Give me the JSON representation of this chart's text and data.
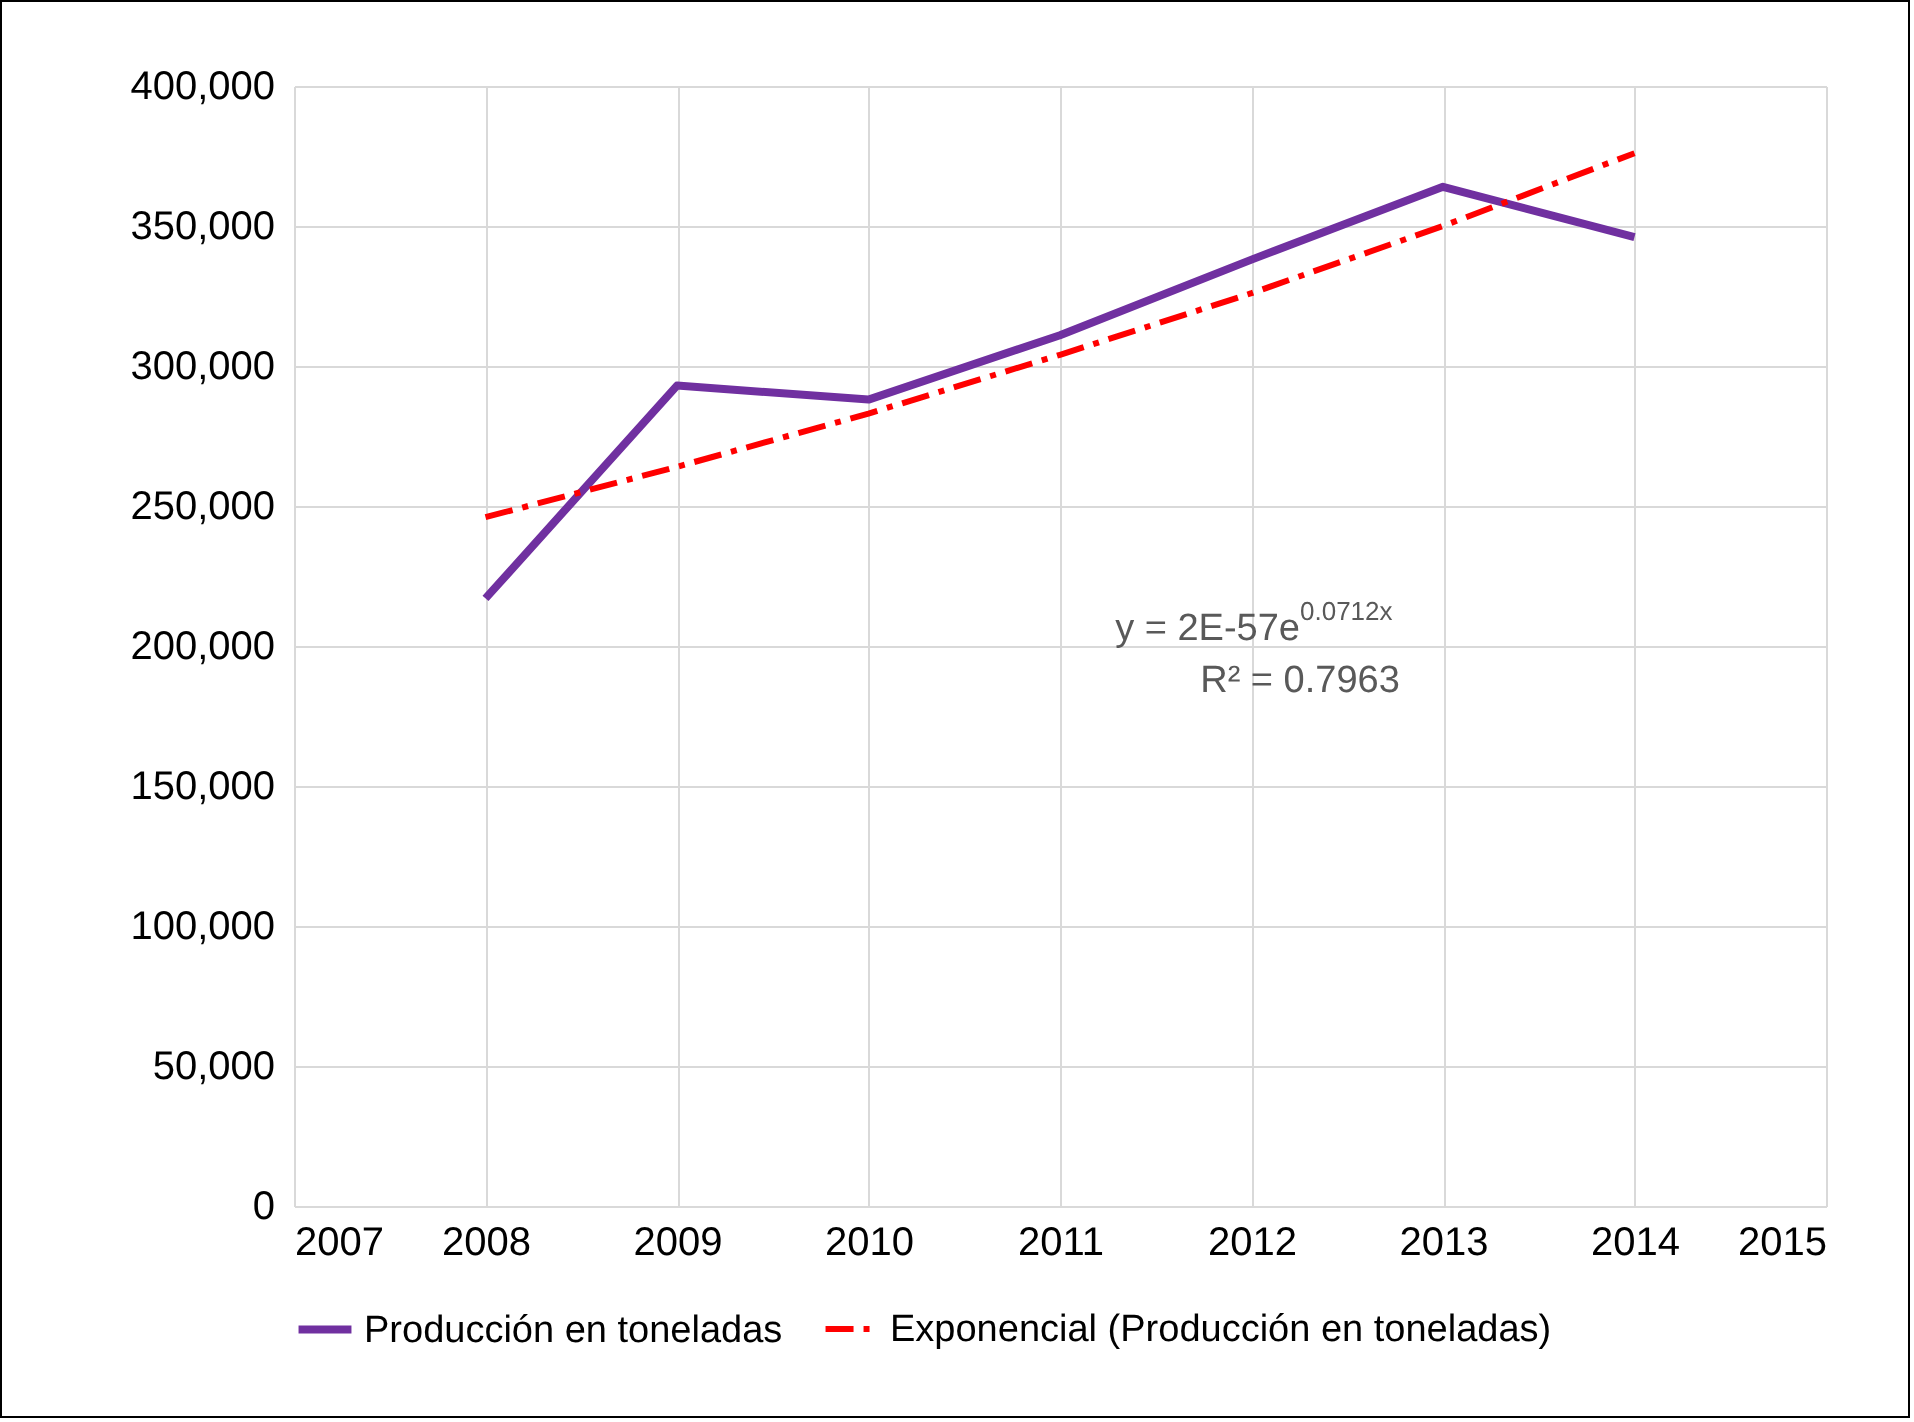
{
  "chart_data": {
    "type": "line",
    "x": [
      2008,
      2009,
      2010,
      2011,
      2012,
      2013,
      2014
    ],
    "series": [
      {
        "name": "Producción en toneladas",
        "color": "#7030a0",
        "values": [
          217000,
          293000,
          288000,
          311000,
          338000,
          364000,
          346000
        ]
      },
      {
        "name": "Exponencial (Producción en toneladas)",
        "color": "#ff0000",
        "line_style": "dashed",
        "values": [
          246000,
          264000,
          283000,
          304000,
          326000,
          350000,
          376000
        ]
      }
    ],
    "xlim": [
      2007,
      2015
    ],
    "xticks": [
      2007,
      2008,
      2009,
      2010,
      2011,
      2012,
      2013,
      2014,
      2015
    ],
    "ylim": [
      0,
      400000
    ],
    "yticks": [
      0,
      {
        "value": 50000,
        "label": "50,000"
      },
      {
        "value": 100000,
        "label": "100,000"
      },
      {
        "value": 150000,
        "label": "150,000"
      },
      {
        "value": 200000,
        "label": "200,000"
      },
      {
        "value": 250000,
        "label": "250,000"
      },
      {
        "value": 300000,
        "label": "300,000"
      },
      {
        "value": 350000,
        "label": "350,000"
      },
      {
        "value": 400000,
        "label": "400,000"
      }
    ],
    "grid": true,
    "legend": "bottom",
    "marker": "none",
    "annotations": [
      "y = 2E-57e$^{0.0712x}$",
      "R² = 0.7963"
    ]
  }
}
